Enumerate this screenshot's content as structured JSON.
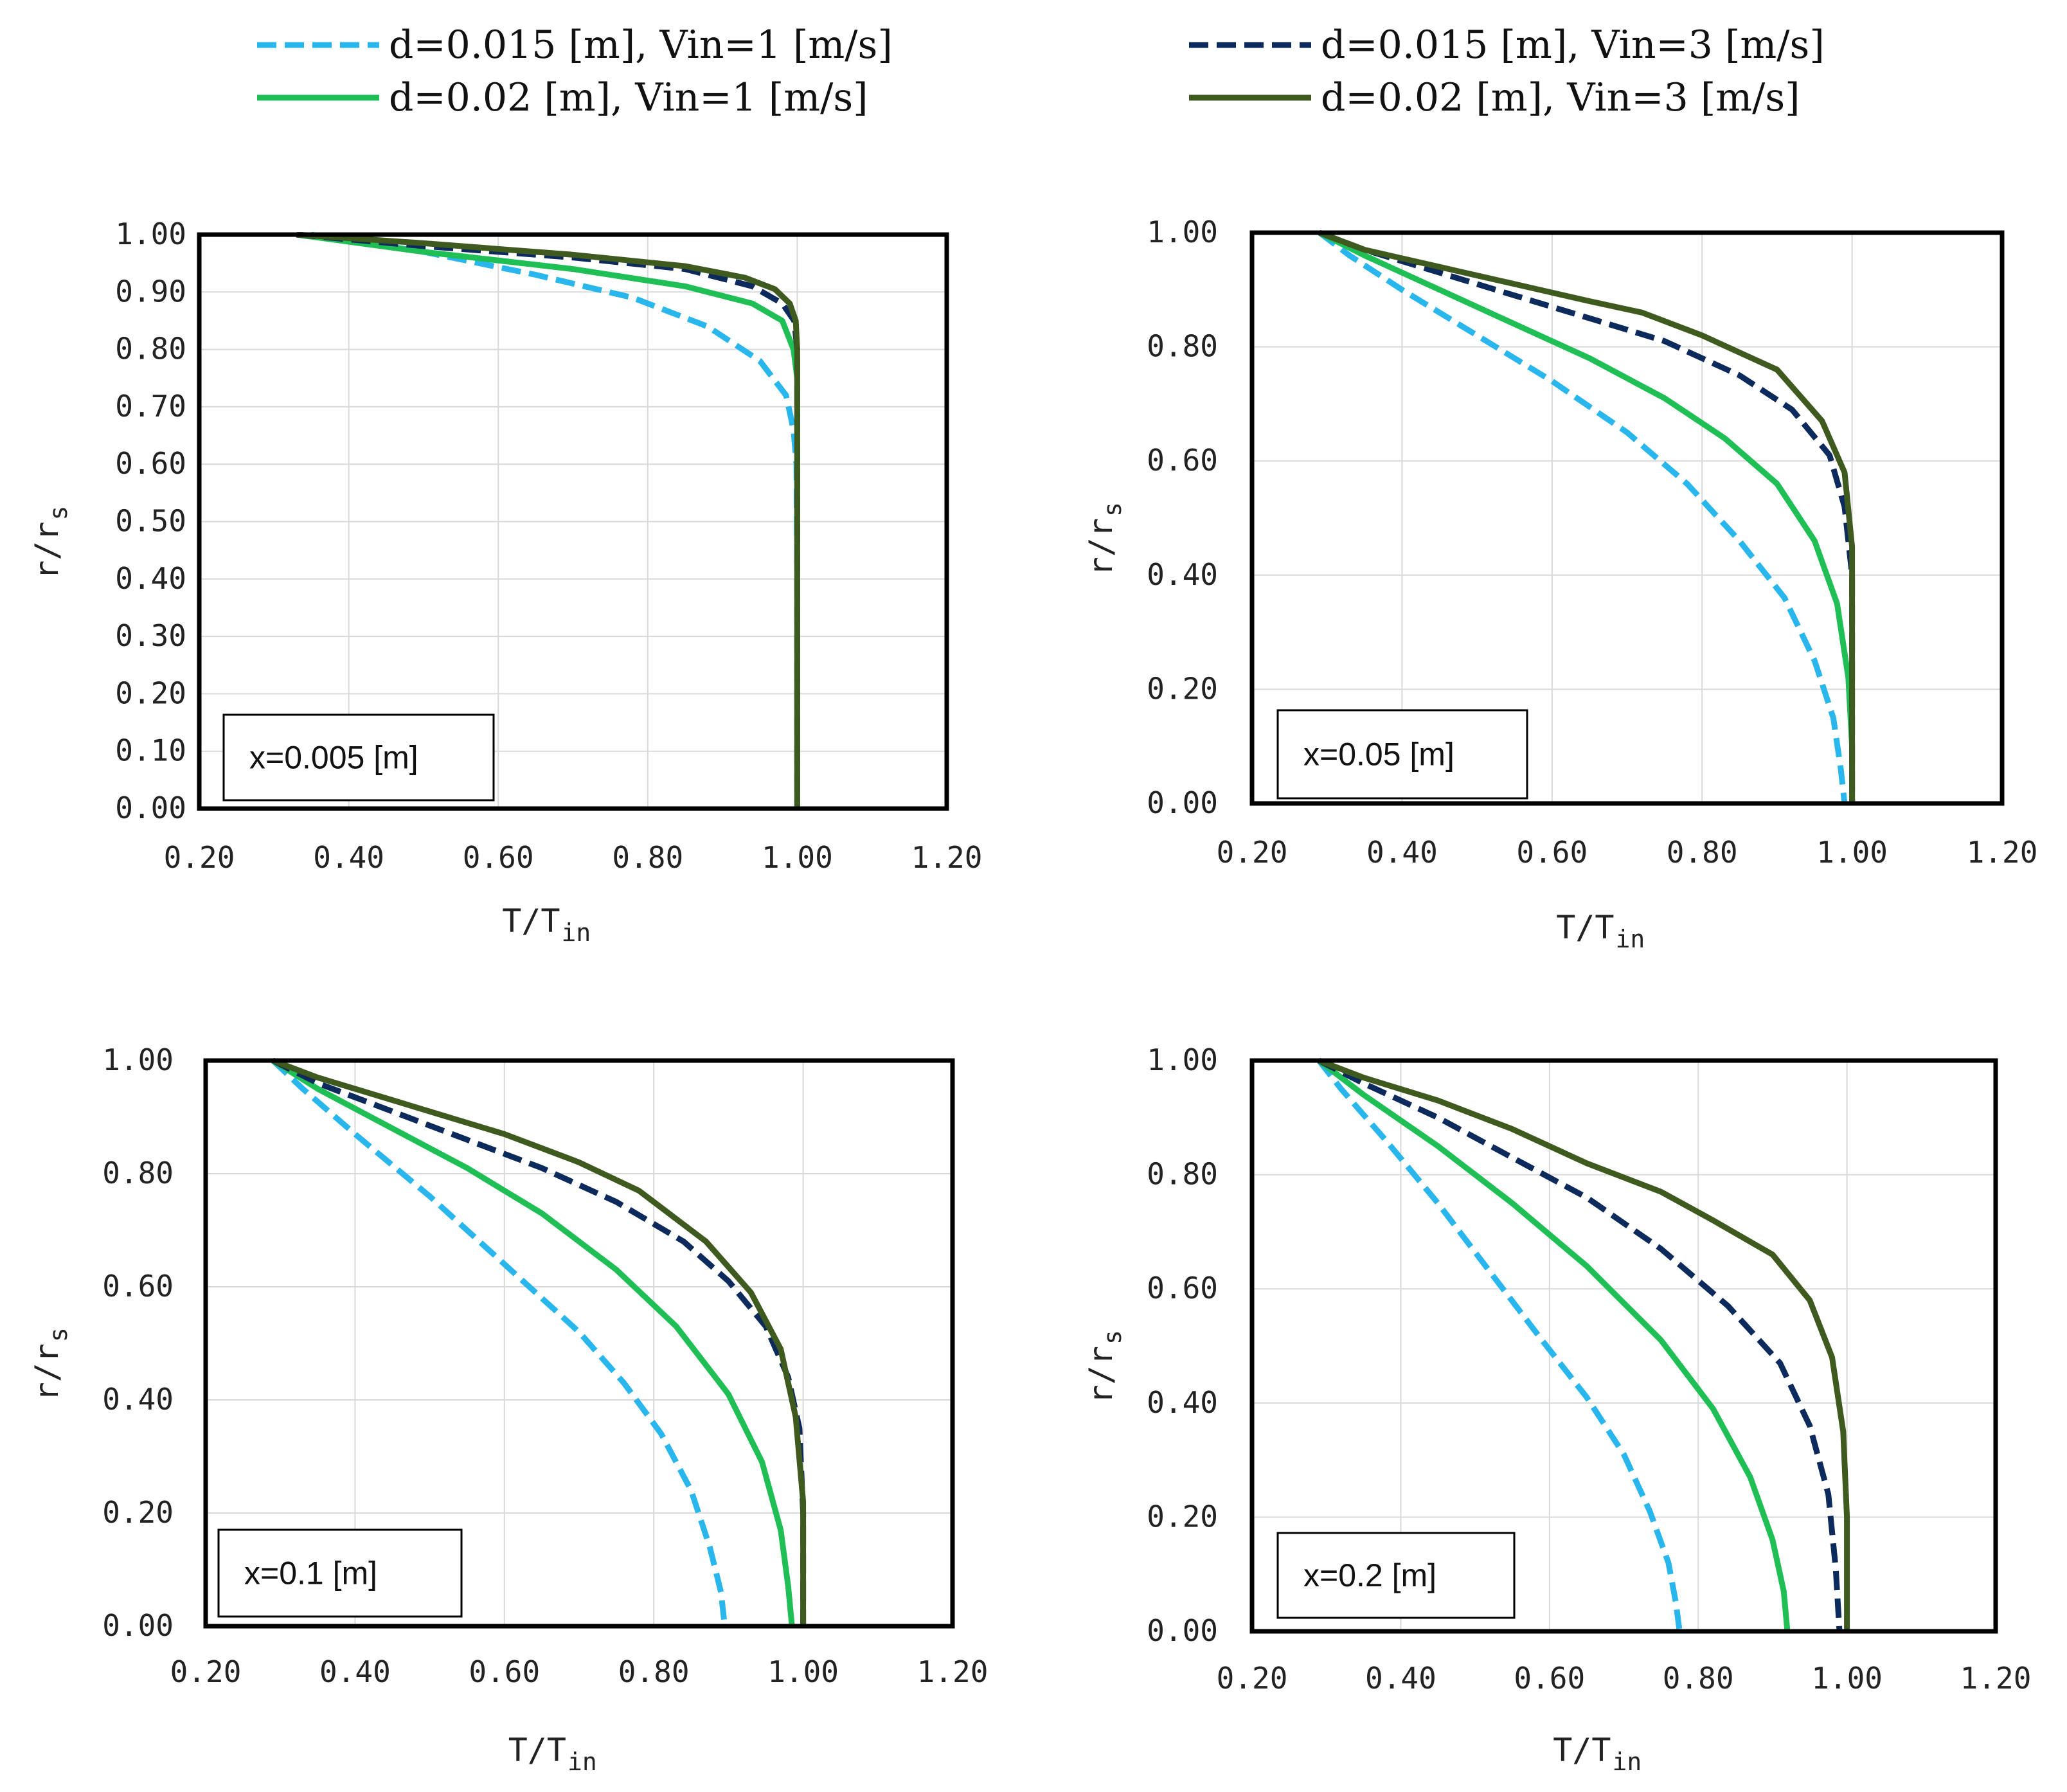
{
  "legend": [
    {
      "label": "d=0.015 [m], Vin=1 [m/s]",
      "color": "#29b6ec",
      "dash": true
    },
    {
      "label": "d=0.02 [m], Vin=1 [m/s]",
      "color": "#1fbf55",
      "dash": false
    },
    {
      "label": "d=0.015 [m], Vin=3 [m/s]",
      "color": "#0d2a5c",
      "dash": true
    },
    {
      "label": "d=0.02 [m], Vin=3 [m/s]",
      "color": "#3f5a1e",
      "dash": false
    }
  ],
  "chart_data": [
    {
      "type": "line",
      "annotation": "x=0.005 [m]",
      "xlabel": "T/T",
      "xlabel_sub": "in",
      "ylabel": "r/r",
      "ylabel_sub": "s",
      "xlim": [
        0.2,
        1.2
      ],
      "ylim": [
        0,
        1
      ],
      "xticks": [
        "0.20",
        "0.40",
        "0.60",
        "0.80",
        "1.00",
        "1.20"
      ],
      "yticks": [
        "0.00",
        "0.10",
        "0.20",
        "0.30",
        "0.40",
        "0.50",
        "0.60",
        "0.70",
        "0.80",
        "0.90",
        "1.00"
      ],
      "series": [
        {
          "name": "d=0.015 [m], Vin=1 [m/s]",
          "x": [
            0.35,
            0.5,
            0.65,
            0.78,
            0.88,
            0.95,
            0.985,
            0.995,
            0.999,
            1.0,
            1.0
          ],
          "y": [
            1.0,
            0.97,
            0.93,
            0.89,
            0.84,
            0.78,
            0.72,
            0.66,
            0.6,
            0.4,
            0.0
          ]
        },
        {
          "name": "d=0.02 [m], Vin=1 [m/s]",
          "x": [
            0.33,
            0.5,
            0.7,
            0.85,
            0.94,
            0.98,
            0.995,
            1.0,
            1.0
          ],
          "y": [
            1.0,
            0.97,
            0.94,
            0.91,
            0.88,
            0.85,
            0.8,
            0.75,
            0.0
          ]
        },
        {
          "name": "d=0.015 [m], Vin=3 [m/s]",
          "x": [
            0.33,
            0.5,
            0.7,
            0.85,
            0.94,
            0.98,
            0.996,
            1.0,
            1.0
          ],
          "y": [
            1.0,
            0.98,
            0.96,
            0.94,
            0.91,
            0.88,
            0.85,
            0.8,
            0.0
          ]
        },
        {
          "name": "d=0.02 [m], Vin=3 [m/s]",
          "x": [
            0.33,
            0.5,
            0.7,
            0.85,
            0.93,
            0.97,
            0.99,
            0.998,
            1.0,
            1.0
          ],
          "y": [
            1.0,
            0.985,
            0.965,
            0.945,
            0.925,
            0.905,
            0.88,
            0.85,
            0.8,
            0.0
          ]
        }
      ]
    },
    {
      "type": "line",
      "annotation": "x=0.05 [m]",
      "xlabel": "T/T",
      "xlabel_sub": "in",
      "ylabel": "r/r",
      "ylabel_sub": "s",
      "xlim": [
        0.2,
        1.2
      ],
      "ylim": [
        0,
        1
      ],
      "xticks": [
        "0.20",
        "0.40",
        "0.60",
        "0.80",
        "1.00",
        "1.20"
      ],
      "yticks": [
        "0.00",
        "0.20",
        "0.40",
        "0.60",
        "0.80",
        "1.00"
      ],
      "series": [
        {
          "name": "d=0.015 [m], Vin=1 [m/s]",
          "x": [
            0.29,
            0.33,
            0.4,
            0.5,
            0.6,
            0.7,
            0.78,
            0.85,
            0.91,
            0.95,
            0.975,
            0.985,
            0.99
          ],
          "y": [
            1.0,
            0.96,
            0.9,
            0.82,
            0.74,
            0.65,
            0.56,
            0.46,
            0.36,
            0.25,
            0.15,
            0.06,
            0.0
          ]
        },
        {
          "name": "d=0.02 [m], Vin=1 [m/s]",
          "x": [
            0.29,
            0.35,
            0.45,
            0.55,
            0.65,
            0.75,
            0.83,
            0.9,
            0.95,
            0.98,
            0.995,
            1.0,
            1.0
          ],
          "y": [
            1.0,
            0.96,
            0.9,
            0.84,
            0.78,
            0.71,
            0.64,
            0.56,
            0.46,
            0.35,
            0.22,
            0.1,
            0.0
          ]
        },
        {
          "name": "d=0.015 [m], Vin=3 [m/s]",
          "x": [
            0.29,
            0.35,
            0.45,
            0.55,
            0.65,
            0.75,
            0.85,
            0.92,
            0.97,
            0.99,
            1.0,
            1.0
          ],
          "y": [
            1.0,
            0.97,
            0.93,
            0.89,
            0.85,
            0.81,
            0.75,
            0.69,
            0.61,
            0.52,
            0.4,
            0.0
          ]
        },
        {
          "name": "d=0.02 [m], Vin=3 [m/s]",
          "x": [
            0.29,
            0.35,
            0.45,
            0.55,
            0.65,
            0.72,
            0.8,
            0.9,
            0.96,
            0.99,
            1.0,
            1.0
          ],
          "y": [
            1.0,
            0.97,
            0.94,
            0.91,
            0.88,
            0.86,
            0.82,
            0.76,
            0.67,
            0.58,
            0.45,
            0.0
          ]
        }
      ]
    },
    {
      "type": "line",
      "annotation": "x=0.1 [m]",
      "xlabel": "T/T",
      "xlabel_sub": "in",
      "ylabel": "r/r",
      "ylabel_sub": "s",
      "xlim": [
        0.2,
        1.2
      ],
      "ylim": [
        0,
        1
      ],
      "xticks": [
        "0.20",
        "0.40",
        "0.60",
        "0.80",
        "1.00",
        "1.20"
      ],
      "yticks": [
        "0.00",
        "0.20",
        "0.40",
        "0.60",
        "0.80",
        "1.00"
      ],
      "series": [
        {
          "name": "d=0.015 [m], Vin=1 [m/s]",
          "x": [
            0.29,
            0.33,
            0.4,
            0.5,
            0.6,
            0.7,
            0.76,
            0.81,
            0.85,
            0.875,
            0.89,
            0.895
          ],
          "y": [
            1.0,
            0.95,
            0.87,
            0.76,
            0.64,
            0.52,
            0.43,
            0.34,
            0.24,
            0.14,
            0.06,
            0.0
          ]
        },
        {
          "name": "d=0.02 [m], Vin=1 [m/s]",
          "x": [
            0.29,
            0.35,
            0.45,
            0.55,
            0.65,
            0.75,
            0.83,
            0.9,
            0.945,
            0.97,
            0.98,
            0.985
          ],
          "y": [
            1.0,
            0.95,
            0.88,
            0.81,
            0.73,
            0.63,
            0.53,
            0.41,
            0.29,
            0.17,
            0.07,
            0.0
          ]
        },
        {
          "name": "d=0.015 [m], Vin=3 [m/s]",
          "x": [
            0.29,
            0.35,
            0.45,
            0.55,
            0.65,
            0.75,
            0.84,
            0.9,
            0.95,
            0.98,
            0.995,
            1.0,
            1.0
          ],
          "y": [
            1.0,
            0.96,
            0.91,
            0.86,
            0.81,
            0.75,
            0.68,
            0.61,
            0.53,
            0.44,
            0.35,
            0.2,
            0.0
          ]
        },
        {
          "name": "d=0.02 [m], Vin=3 [m/s]",
          "x": [
            0.29,
            0.35,
            0.45,
            0.6,
            0.7,
            0.78,
            0.87,
            0.93,
            0.97,
            0.99,
            1.0,
            1.0
          ],
          "y": [
            1.0,
            0.97,
            0.93,
            0.87,
            0.82,
            0.77,
            0.68,
            0.59,
            0.49,
            0.37,
            0.22,
            0.0
          ]
        }
      ]
    },
    {
      "type": "line",
      "annotation": "x=0.2 [m]",
      "xlabel": "T/T",
      "xlabel_sub": "in",
      "ylabel": "r/r",
      "ylabel_sub": "s",
      "xlim": [
        0.2,
        1.2
      ],
      "ylim": [
        0,
        1
      ],
      "xticks": [
        "0.20",
        "0.40",
        "0.60",
        "0.80",
        "1.00",
        "1.20"
      ],
      "yticks": [
        "0.00",
        "0.20",
        "0.40",
        "0.60",
        "0.80",
        "1.00"
      ],
      "series": [
        {
          "name": "d=0.015 [m], Vin=1 [m/s]",
          "x": [
            0.29,
            0.32,
            0.38,
            0.45,
            0.52,
            0.59,
            0.65,
            0.7,
            0.735,
            0.76,
            0.77,
            0.775
          ],
          "y": [
            1.0,
            0.95,
            0.86,
            0.75,
            0.63,
            0.51,
            0.41,
            0.31,
            0.21,
            0.12,
            0.05,
            0.0
          ]
        },
        {
          "name": "d=0.02 [m], Vin=1 [m/s]",
          "x": [
            0.29,
            0.35,
            0.45,
            0.55,
            0.65,
            0.75,
            0.82,
            0.87,
            0.9,
            0.915,
            0.92
          ],
          "y": [
            1.0,
            0.94,
            0.85,
            0.75,
            0.64,
            0.51,
            0.39,
            0.27,
            0.16,
            0.07,
            0.0
          ]
        },
        {
          "name": "d=0.015 [m], Vin=3 [m/s]",
          "x": [
            0.29,
            0.35,
            0.45,
            0.55,
            0.65,
            0.75,
            0.84,
            0.91,
            0.95,
            0.975,
            0.985,
            0.99
          ],
          "y": [
            1.0,
            0.96,
            0.9,
            0.83,
            0.76,
            0.67,
            0.57,
            0.47,
            0.36,
            0.24,
            0.11,
            0.0
          ]
        },
        {
          "name": "d=0.02 [m], Vin=3 [m/s]",
          "x": [
            0.29,
            0.35,
            0.45,
            0.55,
            0.65,
            0.75,
            0.82,
            0.9,
            0.95,
            0.98,
            0.995,
            1.0,
            1.0
          ],
          "y": [
            1.0,
            0.97,
            0.93,
            0.88,
            0.82,
            0.77,
            0.72,
            0.66,
            0.58,
            0.48,
            0.35,
            0.2,
            0.0
          ]
        }
      ]
    }
  ]
}
